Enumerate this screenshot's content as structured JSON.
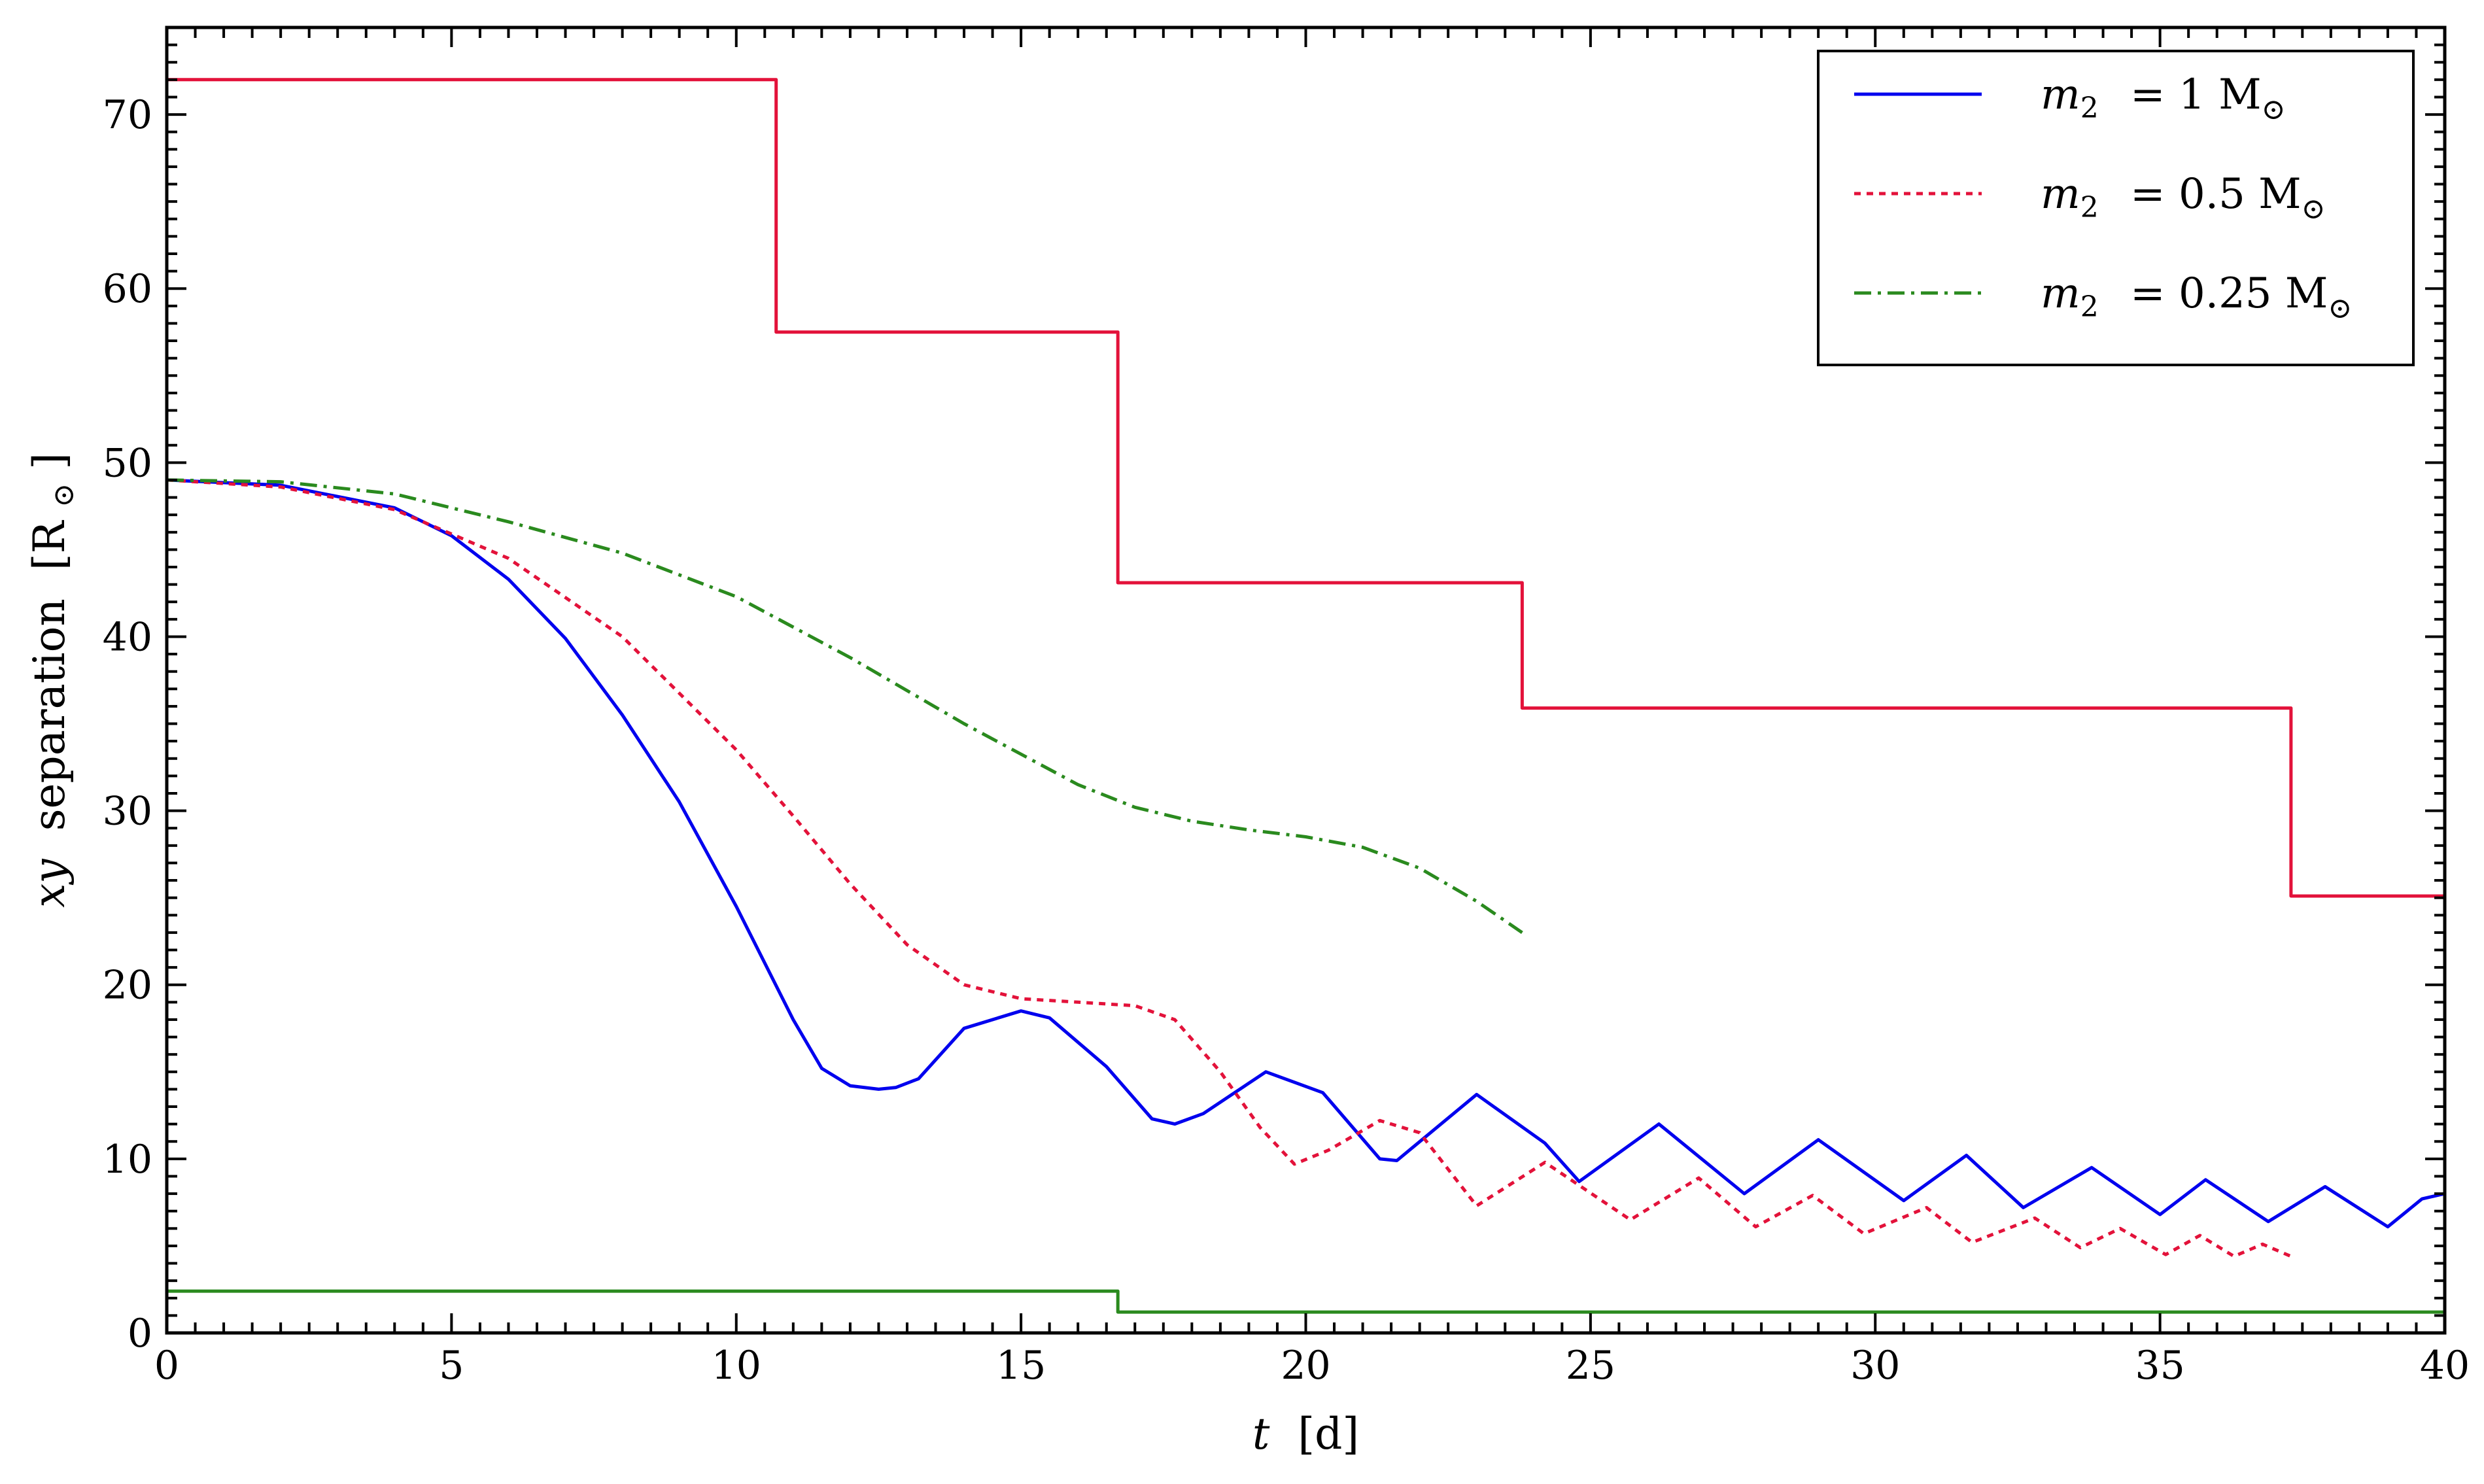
{
  "chart_data": {
    "type": "line",
    "xlabel": {
      "var": "t",
      "unit": "[d]"
    },
    "ylabel": {
      "var": "xy",
      "word": "separation",
      "unit": "[R",
      "unit_sub": "⊙",
      "unit_close": "]"
    },
    "xlim": [
      0,
      40
    ],
    "ylim": [
      0,
      75
    ],
    "xticks": [
      0,
      5,
      10,
      15,
      20,
      25,
      30,
      35,
      40
    ],
    "yticks": [
      0,
      10,
      20,
      30,
      40,
      50,
      60,
      70
    ],
    "grid": false,
    "legend_position": "top-right",
    "series": [
      {
        "name": "m₂  = 1 M⊙",
        "legend": {
          "var": "m",
          "sub": "2",
          "rest": " = 1 M",
          "rest_sub": "⊙"
        },
        "color": "#0000ee",
        "style": "solid",
        "x": [
          0,
          2,
          4,
          5,
          6,
          7,
          8,
          9,
          10,
          11,
          11.5,
          12,
          12.5,
          12.8,
          13.2,
          14,
          15,
          15.5,
          16.5,
          17.3,
          17.7,
          18.2,
          19.3,
          20.3,
          21.3,
          21.6,
          23,
          24.2,
          24.8,
          26.2,
          27.7,
          29,
          30.5,
          31.6,
          32.6,
          33.8,
          35,
          35.8,
          36.9,
          37.9,
          39,
          39.6,
          40
        ],
        "y": [
          49,
          48.7,
          47.4,
          45.8,
          43.3,
          39.9,
          35.5,
          30.5,
          24.5,
          18.0,
          15.2,
          14.2,
          14.0,
          14.1,
          14.6,
          17.5,
          18.5,
          18.1,
          15.3,
          12.3,
          12.0,
          12.6,
          15.0,
          13.8,
          10.0,
          9.9,
          13.7,
          10.9,
          8.7,
          12.0,
          8.0,
          11.1,
          7.6,
          10.2,
          7.2,
          9.5,
          6.8,
          8.8,
          6.4,
          8.4,
          6.1,
          7.7,
          8.0
        ]
      },
      {
        "name": "m₂  = 0.5 M⊙",
        "legend": {
          "var": "m",
          "sub": "2",
          "rest": " = 0.5 M",
          "rest_sub": "⊙"
        },
        "color": "#e3123a",
        "style": "dotted",
        "x": [
          0,
          2,
          4,
          6,
          8,
          10,
          11,
          12,
          13,
          14,
          15,
          16,
          17,
          17.7,
          18.5,
          19.2,
          19.8,
          20.4,
          21.3,
          22,
          23,
          24.2,
          25.7,
          26.9,
          27.9,
          28.9,
          29.8,
          30.9,
          31.7,
          32.8,
          33.6,
          34.3,
          35.1,
          35.7,
          36.3,
          36.8,
          37.3
        ],
        "y": [
          49,
          48.6,
          47.3,
          44.5,
          40.0,
          33.5,
          29.7,
          25.8,
          22.3,
          20.0,
          19.2,
          19.0,
          18.8,
          18.0,
          15.0,
          11.8,
          9.7,
          10.5,
          12.2,
          11.5,
          7.3,
          9.8,
          6.5,
          8.9,
          6.1,
          7.9,
          5.7,
          7.2,
          5.2,
          6.6,
          4.9,
          6.0,
          4.5,
          5.6,
          4.4,
          5.1,
          4.4
        ]
      },
      {
        "name": "m₂  = 0.25 M⊙",
        "legend": {
          "var": "m",
          "sub": "2",
          "rest": " = 0.25 M",
          "rest_sub": "⊙"
        },
        "color": "#2a8a1e",
        "style": "dashdot",
        "x": [
          0,
          2,
          4,
          6,
          8,
          10,
          12,
          14,
          16,
          17,
          18,
          19,
          20,
          21,
          22,
          23,
          23.8
        ],
        "y": [
          49,
          48.9,
          48.2,
          46.6,
          44.8,
          42.3,
          38.8,
          35.0,
          31.5,
          30.2,
          29.4,
          28.9,
          28.5,
          27.9,
          26.7,
          24.8,
          23.0
        ]
      },
      {
        "name": "",
        "color": "#e3123a",
        "style": "solid",
        "step": true,
        "x": [
          0,
          10.7,
          10.7,
          16.7,
          16.7,
          23.8,
          23.8,
          37.3,
          37.3,
          40
        ],
        "y": [
          72,
          72,
          57.5,
          57.5,
          43.1,
          43.1,
          35.9,
          35.9,
          25.1,
          25.1
        ]
      },
      {
        "name": "",
        "color": "#2a8a1e",
        "style": "solid",
        "step": true,
        "x": [
          0,
          16.7,
          16.7,
          40
        ],
        "y": [
          2.4,
          2.4,
          1.2,
          1.2
        ]
      }
    ]
  }
}
